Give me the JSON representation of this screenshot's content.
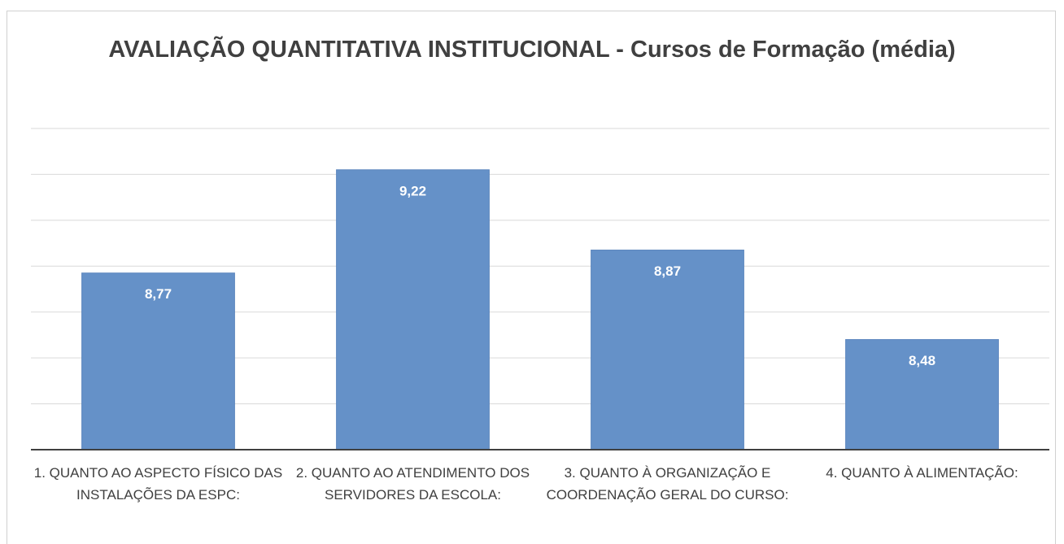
{
  "chart_data": {
    "type": "bar",
    "title": "AVALIAÇÃO QUANTITATIVA INSTITUCIONAL - Cursos de Formação (média)",
    "categories": [
      "1. QUANTO AO ASPECTO FÍSICO DAS INSTALAÇÕES DA ESPC:",
      "2. QUANTO AO ATENDIMENTO DOS SERVIDORES DA ESCOLA:",
      "3. QUANTO À ORGANIZAÇÃO E COORDENAÇÃO GERAL DO CURSO:",
      "4. QUANTO À ALIMENTAÇÃO:"
    ],
    "values": [
      8.77,
      9.22,
      8.87,
      8.48
    ],
    "value_labels": [
      "8,77",
      "9,22",
      "8,87",
      "8,48"
    ],
    "color": "#6591c8",
    "ylim": [
      8,
      9.4
    ],
    "yticks": [
      8,
      8.2,
      8.4,
      8.6,
      8.8,
      9,
      9.2,
      9.4
    ],
    "grid": true
  }
}
